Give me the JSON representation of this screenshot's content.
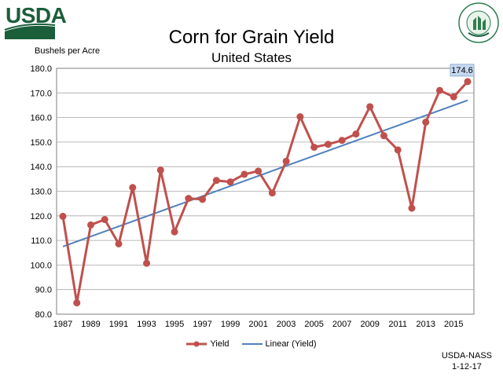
{
  "header": {
    "logo_text": "USDA",
    "seal_text": "AGRICULTURE COUNTS"
  },
  "footer": {
    "source_line1": "USDA-NASS",
    "source_line2": "1-12-17"
  },
  "chart_data": {
    "type": "line",
    "title": "Corn for Grain Yield",
    "subtitle": "United States",
    "ylabel": "Bushels per Acre",
    "xlabel": "",
    "xlim": [
      1987,
      2016
    ],
    "ylim": [
      80,
      180
    ],
    "y_ticks": [
      "80.0",
      "90.0",
      "100.0",
      "110.0",
      "120.0",
      "130.0",
      "140.0",
      "150.0",
      "160.0",
      "170.0",
      "180.0"
    ],
    "x_ticks": [
      "1987",
      "1989",
      "1991",
      "1993",
      "1995",
      "1997",
      "1999",
      "2001",
      "2003",
      "2005",
      "2007",
      "2009",
      "2011",
      "2013",
      "2015"
    ],
    "grid": true,
    "legend_position": "bottom",
    "series": [
      {
        "name": "Yield",
        "color": "#c0504d",
        "marker": "circle",
        "x": [
          1987,
          1988,
          1989,
          1990,
          1991,
          1992,
          1993,
          1994,
          1995,
          1996,
          1997,
          1998,
          1999,
          2000,
          2001,
          2002,
          2003,
          2004,
          2005,
          2006,
          2007,
          2008,
          2009,
          2010,
          2011,
          2012,
          2013,
          2014,
          2015,
          2016
        ],
        "values": [
          119.8,
          84.6,
          116.3,
          118.5,
          108.6,
          131.5,
          100.7,
          138.6,
          113.5,
          127.1,
          126.7,
          134.4,
          133.8,
          136.9,
          138.2,
          129.3,
          142.2,
          160.3,
          147.9,
          149.1,
          150.7,
          153.3,
          164.4,
          152.6,
          146.8,
          123.1,
          158.1,
          171.0,
          168.4,
          174.6
        ]
      },
      {
        "name": "Linear (Yield)",
        "color": "#4f81bd",
        "x": [
          1987,
          2016
        ],
        "values": [
          107.5,
          167.0
        ]
      }
    ],
    "annotations": [
      {
        "x": 2016,
        "y": 174.6,
        "text": "174.6"
      }
    ]
  }
}
